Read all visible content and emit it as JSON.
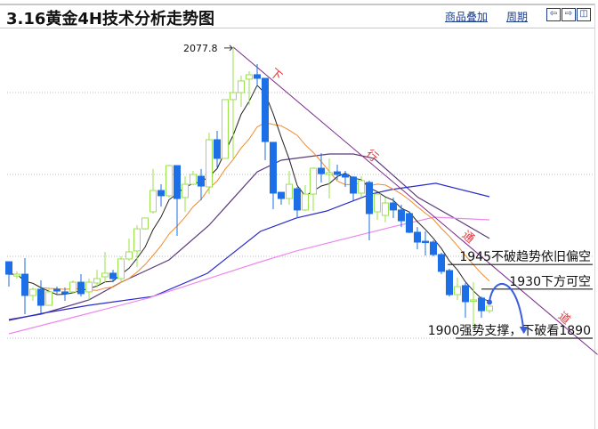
{
  "header": {
    "title": "3.16黄金4H技术分析走势图",
    "overlay_link": "商品叠加",
    "period_link": "周期",
    "nav": {
      "prev": "⇦",
      "next": "⇨",
      "split": "◫"
    }
  },
  "chart_data": {
    "type": "candlestick",
    "title": "3.16黄金4H技术分析走势图",
    "colors": {
      "up": "#9be24c",
      "down": "#1c6fe6",
      "ma5": "#222222",
      "ma10": "#f08a2a",
      "ma_purple": "#5a3b7a",
      "ma_blue": "#2a2acc",
      "ma_pink": "#ee88ee",
      "trendline": "#7a2a8a",
      "annotation": "#e8333a",
      "arrow": "#3a5fdc"
    },
    "grid_levels": [
      2050,
      2000,
      1950,
      1900
    ],
    "peak_label": "2077.8",
    "candles": [
      [
        1946.7,
        1946.7,
        1931.5,
        1939.1
      ],
      [
        1938.0,
        1940.8,
        1936.4,
        1939.1
      ],
      [
        1939.1,
        1948.9,
        1914.7,
        1926.1
      ],
      [
        1926.1,
        1931.0,
        1922.8,
        1929.9
      ],
      [
        1929.9,
        1935.3,
        1915.2,
        1920.1
      ],
      [
        1920.1,
        1931.0,
        1920.1,
        1928.3
      ],
      [
        1929.9,
        1931.5,
        1927.2,
        1928.8
      ],
      [
        1928.3,
        1931.0,
        1922.8,
        1927.2
      ],
      [
        1928.3,
        1935.3,
        1927.2,
        1934.2
      ],
      [
        1934.2,
        1939.1,
        1925.5,
        1927.2
      ],
      [
        1928.3,
        1936.4,
        1923.4,
        1934.2
      ],
      [
        1933.7,
        1941.8,
        1931.0,
        1936.4
      ],
      [
        1937.5,
        1952.7,
        1934.2,
        1939.7
      ],
      [
        1939.7,
        1941.8,
        1934.2,
        1936.4
      ],
      [
        1936.4,
        1950.0,
        1934.2,
        1948.4
      ],
      [
        1948.4,
        1960.9,
        1947.3,
        1952.7
      ],
      [
        1953.3,
        1969.0,
        1943.5,
        1966.8
      ],
      [
        1966.8,
        1973.4,
        1966.3,
        1973.4
      ],
      [
        1977.2,
        2003.3,
        1976.1,
        1990.2
      ],
      [
        1990.2,
        1994.0,
        1980.4,
        1987.0
      ],
      [
        1987.0,
        2006.0,
        1985.9,
        2005.4
      ],
      [
        2005.4,
        2005.4,
        1962.5,
        1985.3
      ],
      [
        1985.9,
        1998.9,
        1977.2,
        1994.0
      ],
      [
        1994.0,
        2002.2,
        1993.5,
        2000.0
      ],
      [
        1998.9,
        2003.3,
        1984.2,
        1992.9
      ],
      [
        1992.4,
        2025.5,
        1988.0,
        2021.2
      ],
      [
        2021.2,
        2026.6,
        2004.3,
        2009.8
      ],
      [
        2009.8,
        2045.7,
        2009.8,
        2045.7
      ],
      [
        2045.7,
        2077.8,
        2009.8,
        2050.0
      ],
      [
        2050.0,
        2060.3,
        2041.3,
        2057.1
      ],
      [
        2058.2,
        2063.0,
        2042.4,
        2060.9
      ],
      [
        2060.9,
        2067.4,
        2053.8,
        2058.7
      ],
      [
        2058.7,
        2058.7,
        2008.7,
        2020.1
      ],
      [
        2019.6,
        2019.6,
        1978.8,
        1988.6
      ],
      [
        1989.1,
        1989.1,
        1981.5,
        1985.3
      ],
      [
        1985.3,
        2002.2,
        1981.5,
        1994.0
      ],
      [
        1991.3,
        1992.4,
        1973.4,
        1978.3
      ],
      [
        1978.3,
        1993.5,
        1977.7,
        1988.0
      ],
      [
        1988.0,
        2004.3,
        1977.7,
        2003.8
      ],
      [
        2003.8,
        2013.0,
        1995.1,
        2000.5
      ],
      [
        2000.0,
        2009.8,
        1985.3,
        2001.1
      ],
      [
        2001.6,
        2006.0,
        1996.7,
        2000.0
      ],
      [
        2000.0,
        2002.2,
        1992.4,
        1998.4
      ],
      [
        1998.4,
        1998.9,
        1984.2,
        1988.6
      ],
      [
        1988.6,
        1998.9,
        1985.9,
        1996.2
      ],
      [
        1995.1,
        1996.2,
        1959.8,
        1976.1
      ],
      [
        1977.2,
        1988.6,
        1972.3,
        1988.0
      ],
      [
        1975.0,
        1985.9,
        1970.7,
        1982.6
      ],
      [
        1982.6,
        1985.9,
        1973.4,
        1978.3
      ],
      [
        1978.3,
        1981.5,
        1967.9,
        1971.7
      ],
      [
        1976.1,
        1977.2,
        1964.1,
        1964.7
      ],
      [
        1964.7,
        1967.9,
        1954.3,
        1958.7
      ],
      [
        1959.2,
        1965.2,
        1950.5,
        1958.7
      ],
      [
        1958.7,
        1959.8,
        1950.0,
        1951.1
      ],
      [
        1951.1,
        1952.2,
        1939.1,
        1940.8
      ],
      [
        1941.3,
        1942.4,
        1925.5,
        1926.6
      ],
      [
        1926.6,
        1937.0,
        1923.4,
        1931.5
      ],
      [
        1932.1,
        1933.7,
        1912.5,
        1922.3
      ],
      [
        1922.8,
        1934.2,
        1906.0,
        1923.4
      ],
      [
        1924.5,
        1925.5,
        1912.5,
        1916.8
      ],
      [
        1916.8,
        1919.6,
        1915.2,
        1919.6
      ]
    ],
    "candle_fields": [
      "open",
      "high",
      "low",
      "close"
    ],
    "computed_ma": [
      5,
      10
    ],
    "ma_series": [
      {
        "name": "ma_purple",
        "points": [
          [
            0,
            1911.4
          ],
          [
            4,
            1914.7
          ],
          [
            10,
            1923.4
          ],
          [
            14,
            1934.2
          ],
          [
            20,
            1947.8
          ],
          [
            25,
            1969.0
          ],
          [
            31,
            2001.6
          ],
          [
            34,
            2008.7
          ],
          [
            40,
            2012.5
          ],
          [
            43,
            2012.5
          ],
          [
            45.6,
            2009.8
          ],
          [
            51.1,
            1985.9
          ],
          [
            55.6,
            1973.4
          ],
          [
            60,
            1960.9
          ]
        ]
      },
      {
        "name": "ma_blue",
        "points": [
          [
            0,
            1910.9
          ],
          [
            4.2,
            1915.2
          ],
          [
            10,
            1920.1
          ],
          [
            18,
            1925.5
          ],
          [
            24.8,
            1939.7
          ],
          [
            31.4,
            1965.2
          ],
          [
            35.9,
            1973.4
          ],
          [
            39.7,
            1977.7
          ],
          [
            45.2,
            1988.0
          ],
          [
            47.8,
            1990.8
          ],
          [
            53.3,
            1994.6
          ],
          [
            60,
            1986.4
          ]
        ]
      },
      {
        "name": "ma_pink",
        "points": [
          [
            0,
            1902.7
          ],
          [
            10,
            1915.2
          ],
          [
            17.4,
            1924.5
          ],
          [
            31.1,
            1946.2
          ],
          [
            35.9,
            1953.3
          ],
          [
            47.8,
            1967.9
          ],
          [
            53.1,
            1973.9
          ],
          [
            60,
            1972.3
          ]
        ]
      }
    ],
    "trendline": {
      "from": [
        28,
        2077.8
      ],
      "to": [
        73.5,
        1890.0
      ]
    },
    "channel_chars": [
      {
        "text": "下",
        "idx": 32.5
      },
      {
        "text": "行",
        "idx": 44.5
      },
      {
        "text": "通",
        "idx": 56.5
      },
      {
        "text": "道",
        "idx": 68.5
      }
    ],
    "levels": [
      {
        "price": 1945,
        "from_idx": 54.8,
        "label": "1945不破趋势依旧偏空"
      },
      {
        "price": 1930,
        "from_idx": 59,
        "label": "1930下方可空"
      },
      {
        "price": 1900,
        "from_idx": 55.8,
        "label": "1900强势支撑，下破看1890"
      }
    ],
    "forecast_arrow": {
      "from": [
        60,
        1922
      ],
      "peak": [
        62,
        1930
      ],
      "to": [
        64.3,
        1900
      ]
    }
  }
}
